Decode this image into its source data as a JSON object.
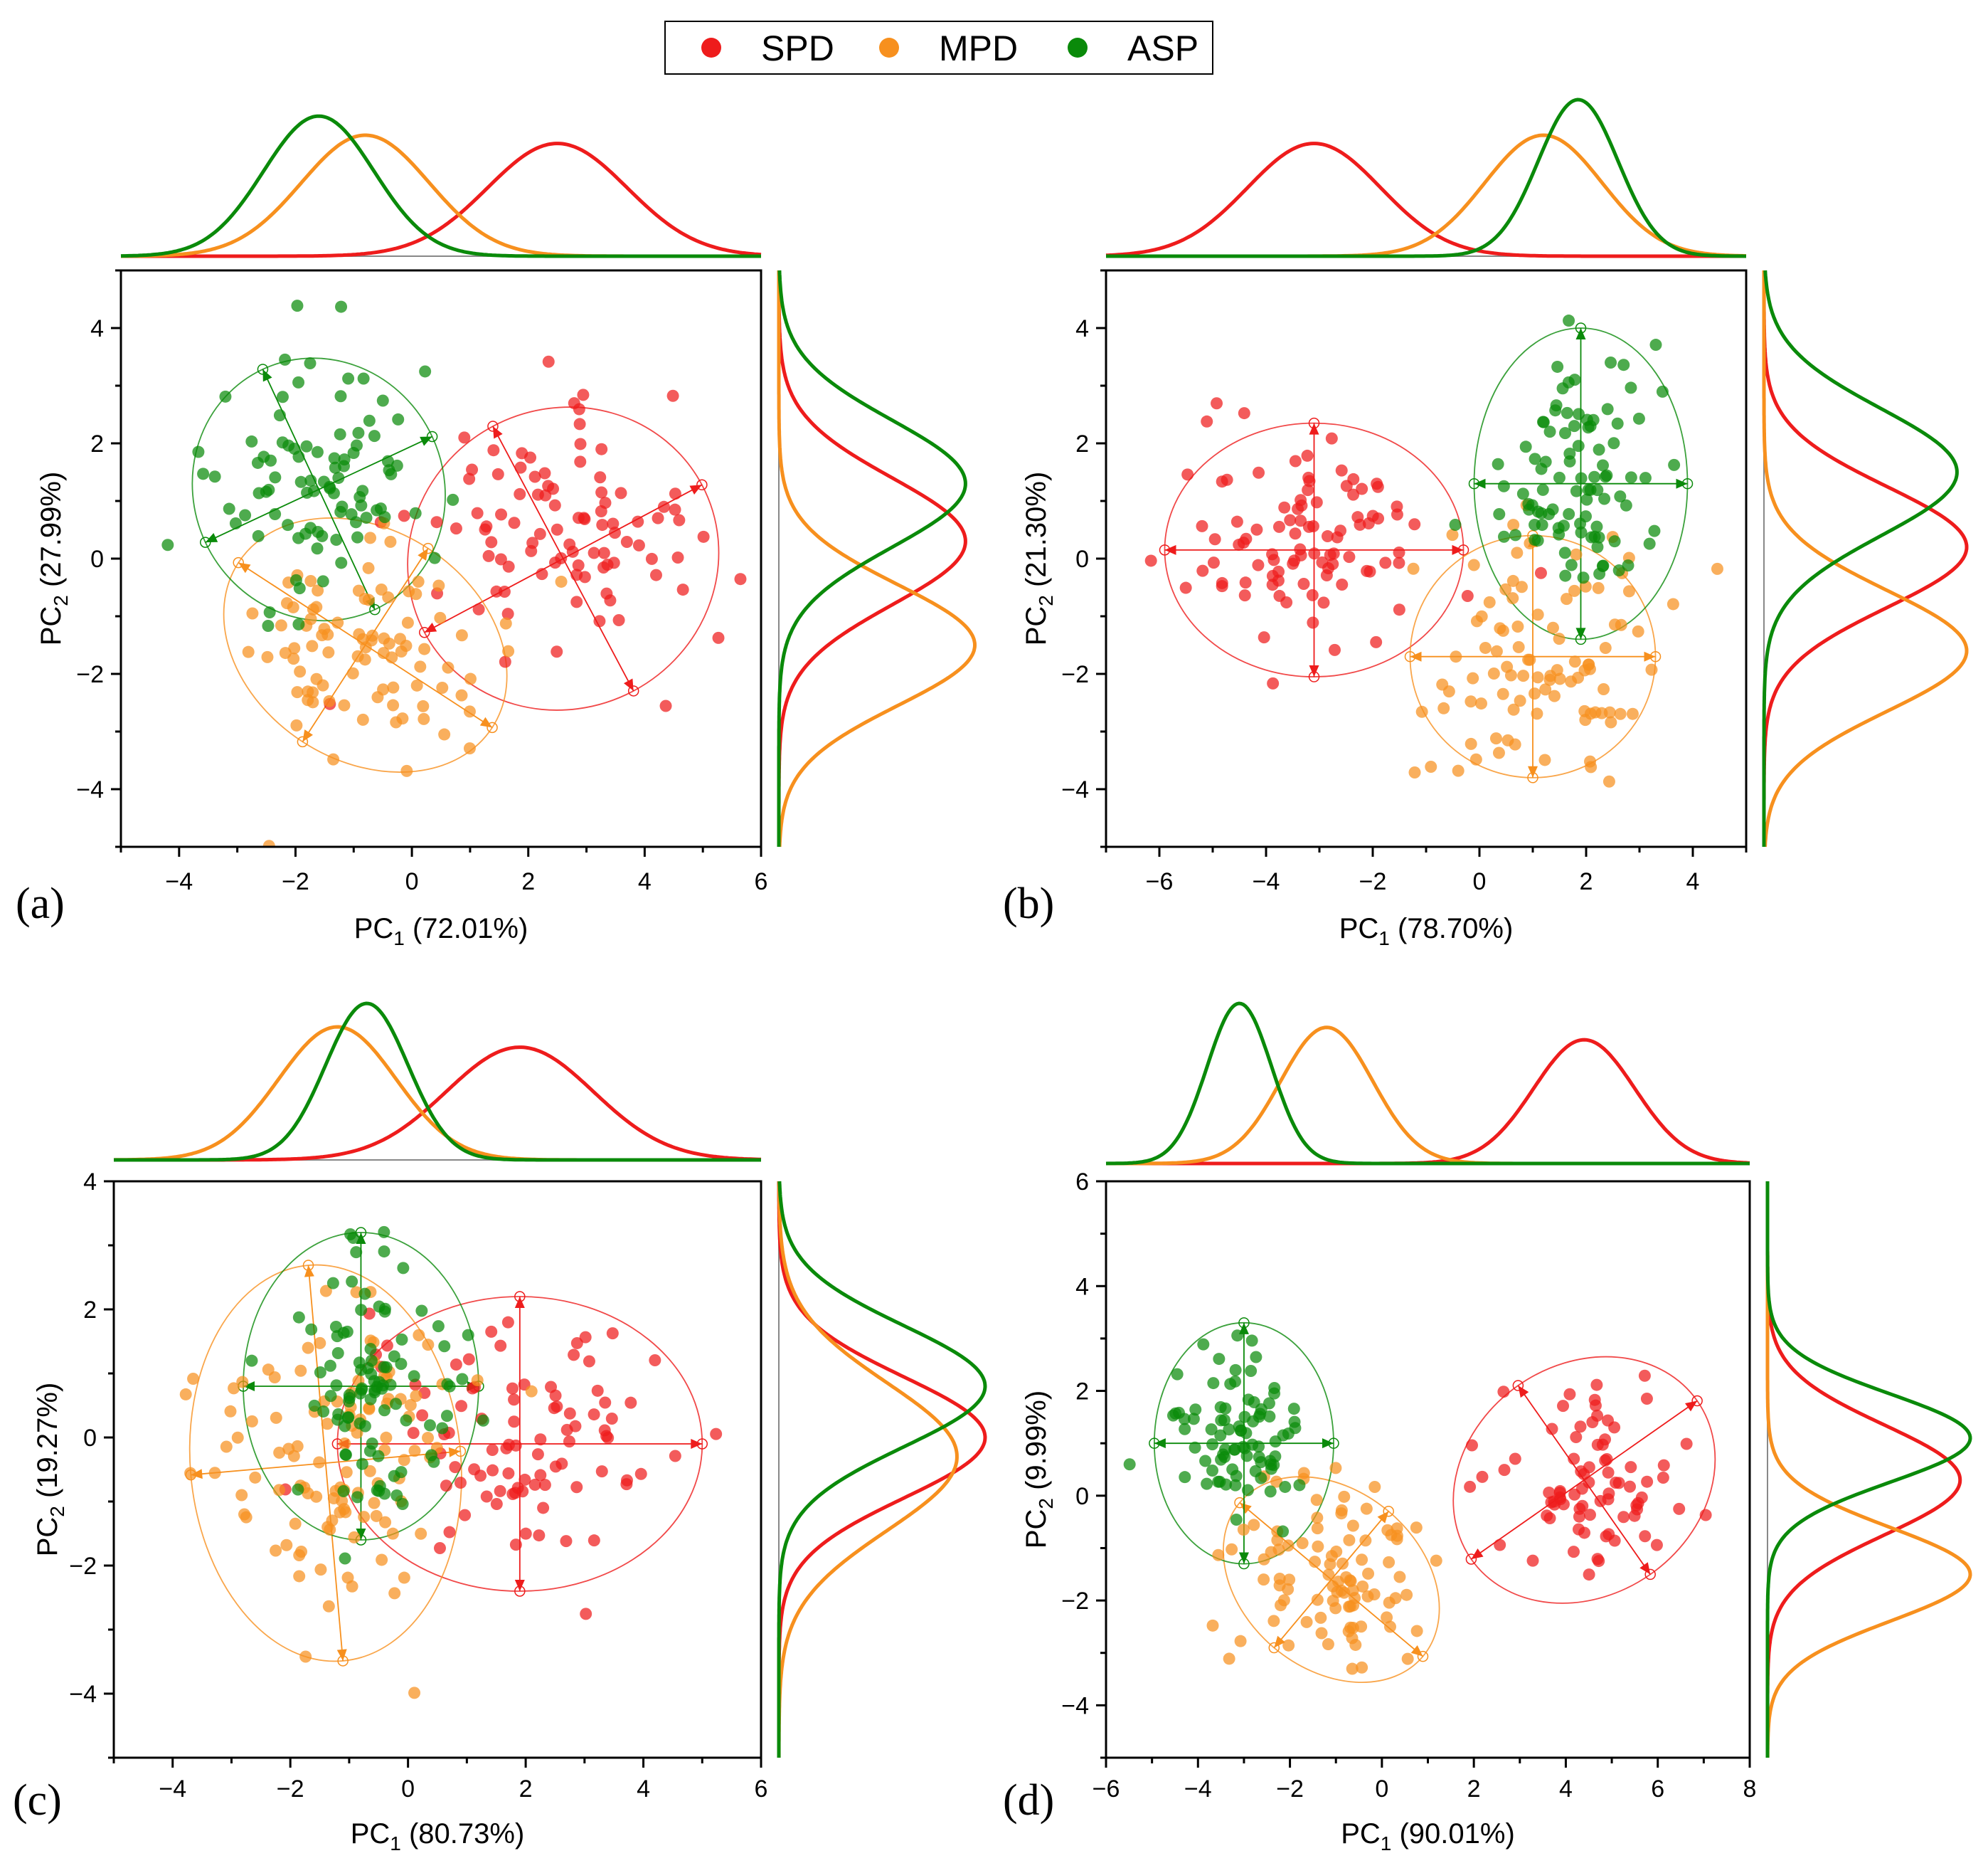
{
  "legend": {
    "entries": [
      {
        "key": "SPD",
        "label": "SPD",
        "color": "#ee1c1c"
      },
      {
        "key": "MPD",
        "label": "MPD",
        "color": "#f7901e"
      },
      {
        "key": "ASP",
        "label": "ASP",
        "color": "#0a8a0a"
      }
    ]
  },
  "chart_data": [
    {
      "type": "scatter",
      "panel": "(a)",
      "xlabel_main": "PC",
      "xlabel_sub": "1",
      "xlabel_rest": " (72.01%)",
      "ylabel_main": "PC",
      "ylabel_sub": "2",
      "ylabel_rest": " (27.99%)",
      "xlim": [
        -5,
        6
      ],
      "ylim": [
        -5,
        5
      ],
      "xticks": [
        -4,
        -2,
        0,
        2,
        4,
        6
      ],
      "yticks": [
        -4,
        -2,
        0,
        2,
        4
      ],
      "xtick_labels": [
        "−4",
        "−2",
        "0",
        "2",
        "4",
        "6"
      ],
      "ytick_labels": [
        "−4",
        "−2",
        "0",
        "2",
        "4"
      ],
      "series": [
        {
          "name": "SPD",
          "cx": 2.5,
          "cy": 0.3,
          "sx": 1.2,
          "sy": 1.05,
          "n": 95,
          "ellipse": {
            "cx": 2.6,
            "cy": 0.0,
            "rx": 2.7,
            "ry": 2.6,
            "angle": 28
          }
        },
        {
          "name": "MPD",
          "cx": -0.8,
          "cy": -1.5,
          "sx": 1.1,
          "sy": 1.0,
          "n": 90,
          "ellipse": {
            "cx": -0.8,
            "cy": -1.5,
            "rx": 2.6,
            "ry": 2.0,
            "angle": -33
          }
        },
        {
          "name": "ASP",
          "cx": -1.6,
          "cy": 1.3,
          "sx": 0.95,
          "sy": 1.05,
          "n": 90,
          "ellipse": {
            "cx": -1.6,
            "cy": 1.2,
            "rx": 2.15,
            "ry": 2.3,
            "angle": 25
          }
        }
      ]
    },
    {
      "type": "scatter",
      "panel": "(b)",
      "xlabel_main": "PC",
      "xlabel_sub": "1",
      "xlabel_rest": " (78.70%)",
      "ylabel_main": "PC",
      "ylabel_sub": "2",
      "ylabel_rest": " (21.30%)",
      "xlim": [
        -7,
        5
      ],
      "ylim": [
        -5,
        5
      ],
      "xticks": [
        -6,
        -4,
        -2,
        0,
        2,
        4
      ],
      "yticks": [
        -4,
        -2,
        0,
        2,
        4
      ],
      "xtick_labels": [
        "−6",
        "−4",
        "−2",
        "0",
        "2",
        "4"
      ],
      "ytick_labels": [
        "−4",
        "−2",
        "0",
        "2",
        "4"
      ],
      "series": [
        {
          "name": "SPD",
          "cx": -3.1,
          "cy": 0.2,
          "sx": 1.25,
          "sy": 1.0,
          "n": 95,
          "ellipse": {
            "cx": -3.1,
            "cy": 0.15,
            "rx": 2.8,
            "ry": 2.2,
            "angle": 0
          }
        },
        {
          "name": "MPD",
          "cx": 1.2,
          "cy": -1.6,
          "sx": 1.1,
          "sy": 1.0,
          "n": 95,
          "ellipse": {
            "cx": 1.0,
            "cy": -1.7,
            "rx": 2.3,
            "ry": 2.1,
            "angle": 0
          }
        },
        {
          "name": "ASP",
          "cx": 1.85,
          "cy": 1.5,
          "sx": 0.75,
          "sy": 1.05,
          "n": 95,
          "ellipse": {
            "cx": 1.9,
            "cy": 1.3,
            "rx": 2.0,
            "ry": 2.7,
            "angle": 0
          }
        }
      ]
    },
    {
      "type": "scatter",
      "panel": "(c)",
      "xlabel_main": "PC",
      "xlabel_sub": "1",
      "xlabel_rest": " (80.73%)",
      "ylabel_main": "PC",
      "ylabel_sub": "2",
      "ylabel_rest": " (19.27%)",
      "xlim": [
        -5,
        6
      ],
      "ylim": [
        -5,
        4
      ],
      "xticks": [
        -4,
        -2,
        0,
        2,
        4,
        6
      ],
      "yticks": [
        -4,
        -2,
        0,
        2,
        4
      ],
      "xtick_labels": [
        "−4",
        "−2",
        "0",
        "2",
        "4",
        "6"
      ],
      "ytick_labels": [
        "−4",
        "−2",
        "0",
        "2",
        "4"
      ],
      "series": [
        {
          "name": "SPD",
          "cx": 1.9,
          "cy": 0.0,
          "sx": 1.25,
          "sy": 0.9,
          "n": 90,
          "ellipse": {
            "cx": 1.9,
            "cy": -0.1,
            "rx": 3.1,
            "ry": 2.3,
            "angle": 0
          }
        },
        {
          "name": "MPD",
          "cx": -1.2,
          "cy": -0.3,
          "sx": 1.0,
          "sy": 1.1,
          "n": 110,
          "ellipse": {
            "cx": -1.4,
            "cy": -0.4,
            "rx": 2.3,
            "ry": 3.1,
            "angle": 5
          }
        },
        {
          "name": "ASP",
          "cx": -0.7,
          "cy": 0.8,
          "sx": 0.7,
          "sy": 0.9,
          "n": 95,
          "ellipse": {
            "cx": -0.8,
            "cy": 0.8,
            "rx": 2.0,
            "ry": 2.4,
            "angle": 0
          }
        }
      ]
    },
    {
      "type": "scatter",
      "panel": "(d)",
      "xlabel_main": "PC",
      "xlabel_sub": "1",
      "xlabel_rest": " (90.01%)",
      "ylabel_main": "PC",
      "ylabel_sub": "2",
      "ylabel_rest": " (9.99%)",
      "xlim": [
        -6,
        8
      ],
      "ylim": [
        -5,
        6
      ],
      "xticks": [
        -6,
        -4,
        -2,
        0,
        2,
        4,
        6,
        8
      ],
      "yticks": [
        -4,
        -2,
        0,
        2,
        4,
        6
      ],
      "xtick_labels": [
        "−6",
        "−4",
        "−2",
        "0",
        "2",
        "4",
        "6",
        "8"
      ],
      "ytick_labels": [
        "−4",
        "−2",
        "0",
        "2",
        "4",
        "6"
      ],
      "series": [
        {
          "name": "SPD",
          "cx": 4.4,
          "cy": 0.3,
          "sx": 1.1,
          "sy": 1.0,
          "n": 80,
          "ellipse": {
            "cx": 4.4,
            "cy": 0.3,
            "rx": 3.0,
            "ry": 2.2,
            "angle": 35
          }
        },
        {
          "name": "MPD",
          "cx": -1.2,
          "cy": -1.5,
          "sx": 1.0,
          "sy": 0.85,
          "n": 95,
          "ellipse": {
            "cx": -1.1,
            "cy": -1.6,
            "rx": 2.6,
            "ry": 1.7,
            "angle": -40
          }
        },
        {
          "name": "ASP",
          "cx": -3.1,
          "cy": 1.1,
          "sx": 0.7,
          "sy": 0.8,
          "n": 85,
          "ellipse": {
            "cx": -3.0,
            "cy": 1.0,
            "rx": 1.95,
            "ry": 2.3,
            "angle": 0
          }
        }
      ]
    }
  ]
}
